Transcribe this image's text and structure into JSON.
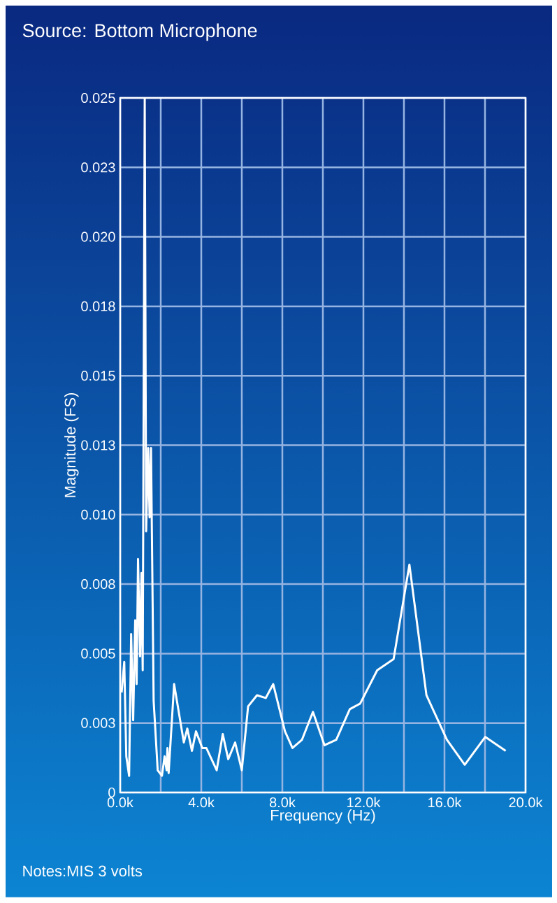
{
  "chart_data": {
    "type": "line",
    "title": "Source:  Bottom Microphone",
    "xlabel": "Frequency (Hz)",
    "ylabel": "Magnitude (FS)",
    "annotations": [
      "Notes:MIS 3 volts"
    ],
    "x": [
      70,
      200,
      300,
      440,
      540,
      640,
      740,
      810,
      880,
      980,
      1050,
      1110,
      1210,
      1280,
      1380,
      1450,
      1520,
      1650,
      1850,
      2060,
      2190,
      2290,
      2330,
      2390,
      2660,
      3140,
      3310,
      3540,
      3740,
      4050,
      4250,
      4760,
      5060,
      5330,
      5670,
      6000,
      6310,
      6750,
      7180,
      7550,
      8130,
      8500,
      8970,
      9510,
      10080,
      10660,
      11330,
      11840,
      12680,
      13490,
      14270,
      15110,
      16120,
      17000,
      18010,
      19020
    ],
    "series": [
      {
        "color": "#ffffff",
        "values": [
          0.0036,
          0.0047,
          0.0013,
          0.0006,
          0.0057,
          0.0026,
          0.0062,
          0.0039,
          0.0084,
          0.0049,
          0.0079,
          0.0044,
          0.025,
          0.0094,
          0.0124,
          0.0099,
          0.0124,
          0.0033,
          0.0008,
          0.0006,
          0.0013,
          0.0008,
          0.0016,
          0.0007,
          0.0039,
          0.0018,
          0.0023,
          0.0015,
          0.0022,
          0.0016,
          0.0016,
          0.0008,
          0.0021,
          0.0012,
          0.0018,
          0.0008,
          0.0031,
          0.0035,
          0.0034,
          0.0039,
          0.0022,
          0.0016,
          0.0019,
          0.0029,
          0.0017,
          0.0019,
          0.003,
          0.0032,
          0.0044,
          0.0048,
          0.0082,
          0.0035,
          0.0019,
          0.001,
          0.002,
          0.0015
        ]
      }
    ],
    "xlim": [
      0,
      20000
    ],
    "ylim": [
      0,
      0.025
    ],
    "xticks": [
      {
        "value": 0,
        "label": "0.0k"
      },
      {
        "value": 2000,
        "label": null
      },
      {
        "value": 4000,
        "label": "4.0k"
      },
      {
        "value": 6000,
        "label": null
      },
      {
        "value": 8000,
        "label": "8.0k"
      },
      {
        "value": 10000,
        "label": null
      },
      {
        "value": 12000,
        "label": "12.0k"
      },
      {
        "value": 14000,
        "label": null
      },
      {
        "value": 16000,
        "label": "16.0k"
      },
      {
        "value": 18000,
        "label": null
      },
      {
        "value": 20000,
        "label": "20.0k"
      }
    ],
    "yticks": [
      0,
      {
        "value": 0.0025,
        "label": "0.003"
      },
      {
        "value": 0.005,
        "label": "0.005"
      },
      {
        "value": 0.0075,
        "label": "0.008"
      },
      {
        "value": 0.01,
        "label": "0.010"
      },
      {
        "value": 0.0125,
        "label": "0.013"
      },
      {
        "value": 0.015,
        "label": "0.015"
      },
      {
        "value": 0.0175,
        "label": "0.018"
      },
      {
        "value": 0.02,
        "label": "0.020"
      },
      {
        "value": 0.0225,
        "label": "0.023"
      },
      {
        "value": 0.025,
        "label": "0.025"
      }
    ],
    "grid": true,
    "marker": "none",
    "line_style": "solid"
  }
}
